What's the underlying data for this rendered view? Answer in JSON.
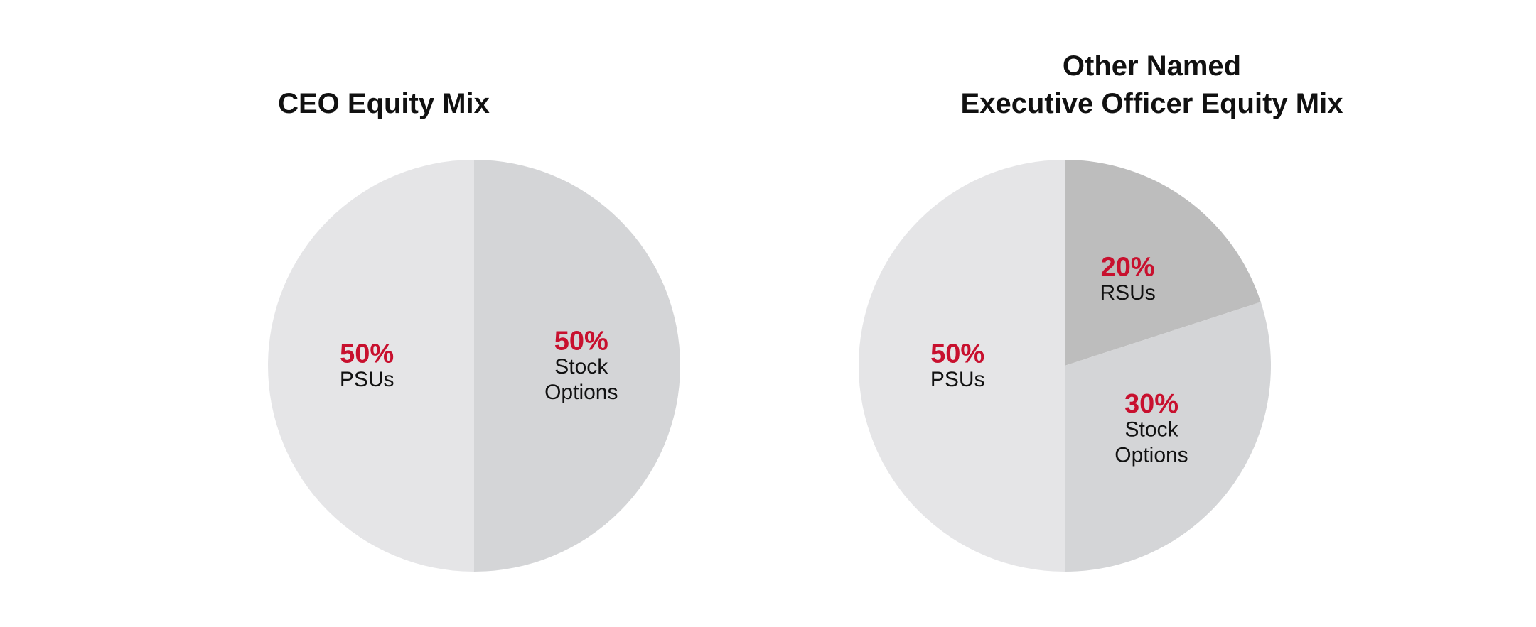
{
  "colors": {
    "accent": "#C8102E",
    "text": "#111111",
    "slice_light": "#E5E5E7",
    "slice_mid": "#D4D5D7",
    "slice_dark": "#BDBDBD"
  },
  "chart_data": [
    {
      "type": "pie",
      "title": "CEO Equity Mix",
      "title_lines": [
        "CEO Equity Mix"
      ],
      "slices": [
        {
          "pct_label": "50%",
          "label_lines": [
            "Stock",
            "Options"
          ],
          "value": 50,
          "color": "#D4D5D7"
        },
        {
          "pct_label": "50%",
          "label_lines": [
            "PSUs"
          ],
          "value": 50,
          "color": "#E5E5E7"
        }
      ]
    },
    {
      "type": "pie",
      "title": "Other Named Executive Officer Equity Mix",
      "title_lines": [
        "Other Named",
        "Executive Officer Equity Mix"
      ],
      "slices": [
        {
          "pct_label": "20%",
          "label_lines": [
            "RSUs"
          ],
          "value": 20,
          "color": "#BDBDBD"
        },
        {
          "pct_label": "30%",
          "label_lines": [
            "Stock",
            "Options"
          ],
          "value": 30,
          "color": "#D4D5D7"
        },
        {
          "pct_label": "50%",
          "label_lines": [
            "PSUs"
          ],
          "value": 50,
          "color": "#E5E5E7"
        }
      ]
    }
  ]
}
